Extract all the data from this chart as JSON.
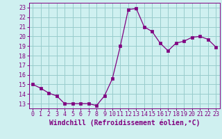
{
  "x": [
    0,
    1,
    2,
    3,
    4,
    5,
    6,
    7,
    8,
    9,
    10,
    11,
    12,
    13,
    14,
    15,
    16,
    17,
    18,
    19,
    20,
    21,
    22,
    23
  ],
  "y": [
    15.0,
    14.6,
    14.1,
    13.8,
    13.0,
    13.0,
    13.0,
    13.0,
    12.8,
    13.8,
    15.6,
    19.0,
    22.8,
    22.9,
    21.0,
    20.5,
    19.3,
    18.5,
    19.3,
    19.5,
    19.9,
    20.0,
    19.7,
    18.9
  ],
  "line_color": "#800080",
  "marker": "s",
  "marker_size": 2.5,
  "bg_color": "#cff0f0",
  "grid_color": "#99cccc",
  "xlabel": "Windchill (Refroidissement éolien,°C)",
  "xlabel_color": "#800080",
  "ylabel_ticks": [
    13,
    14,
    15,
    16,
    17,
    18,
    19,
    20,
    21,
    22,
    23
  ],
  "xticks": [
    0,
    1,
    2,
    3,
    4,
    5,
    6,
    7,
    8,
    9,
    10,
    11,
    12,
    13,
    14,
    15,
    16,
    17,
    18,
    19,
    20,
    21,
    22,
    23
  ],
  "ylim": [
    12.5,
    23.5
  ],
  "xlim": [
    -0.5,
    23.5
  ],
  "tick_color": "#800080",
  "tick_fontsize": 6.0,
  "xlabel_fontsize": 7.0
}
